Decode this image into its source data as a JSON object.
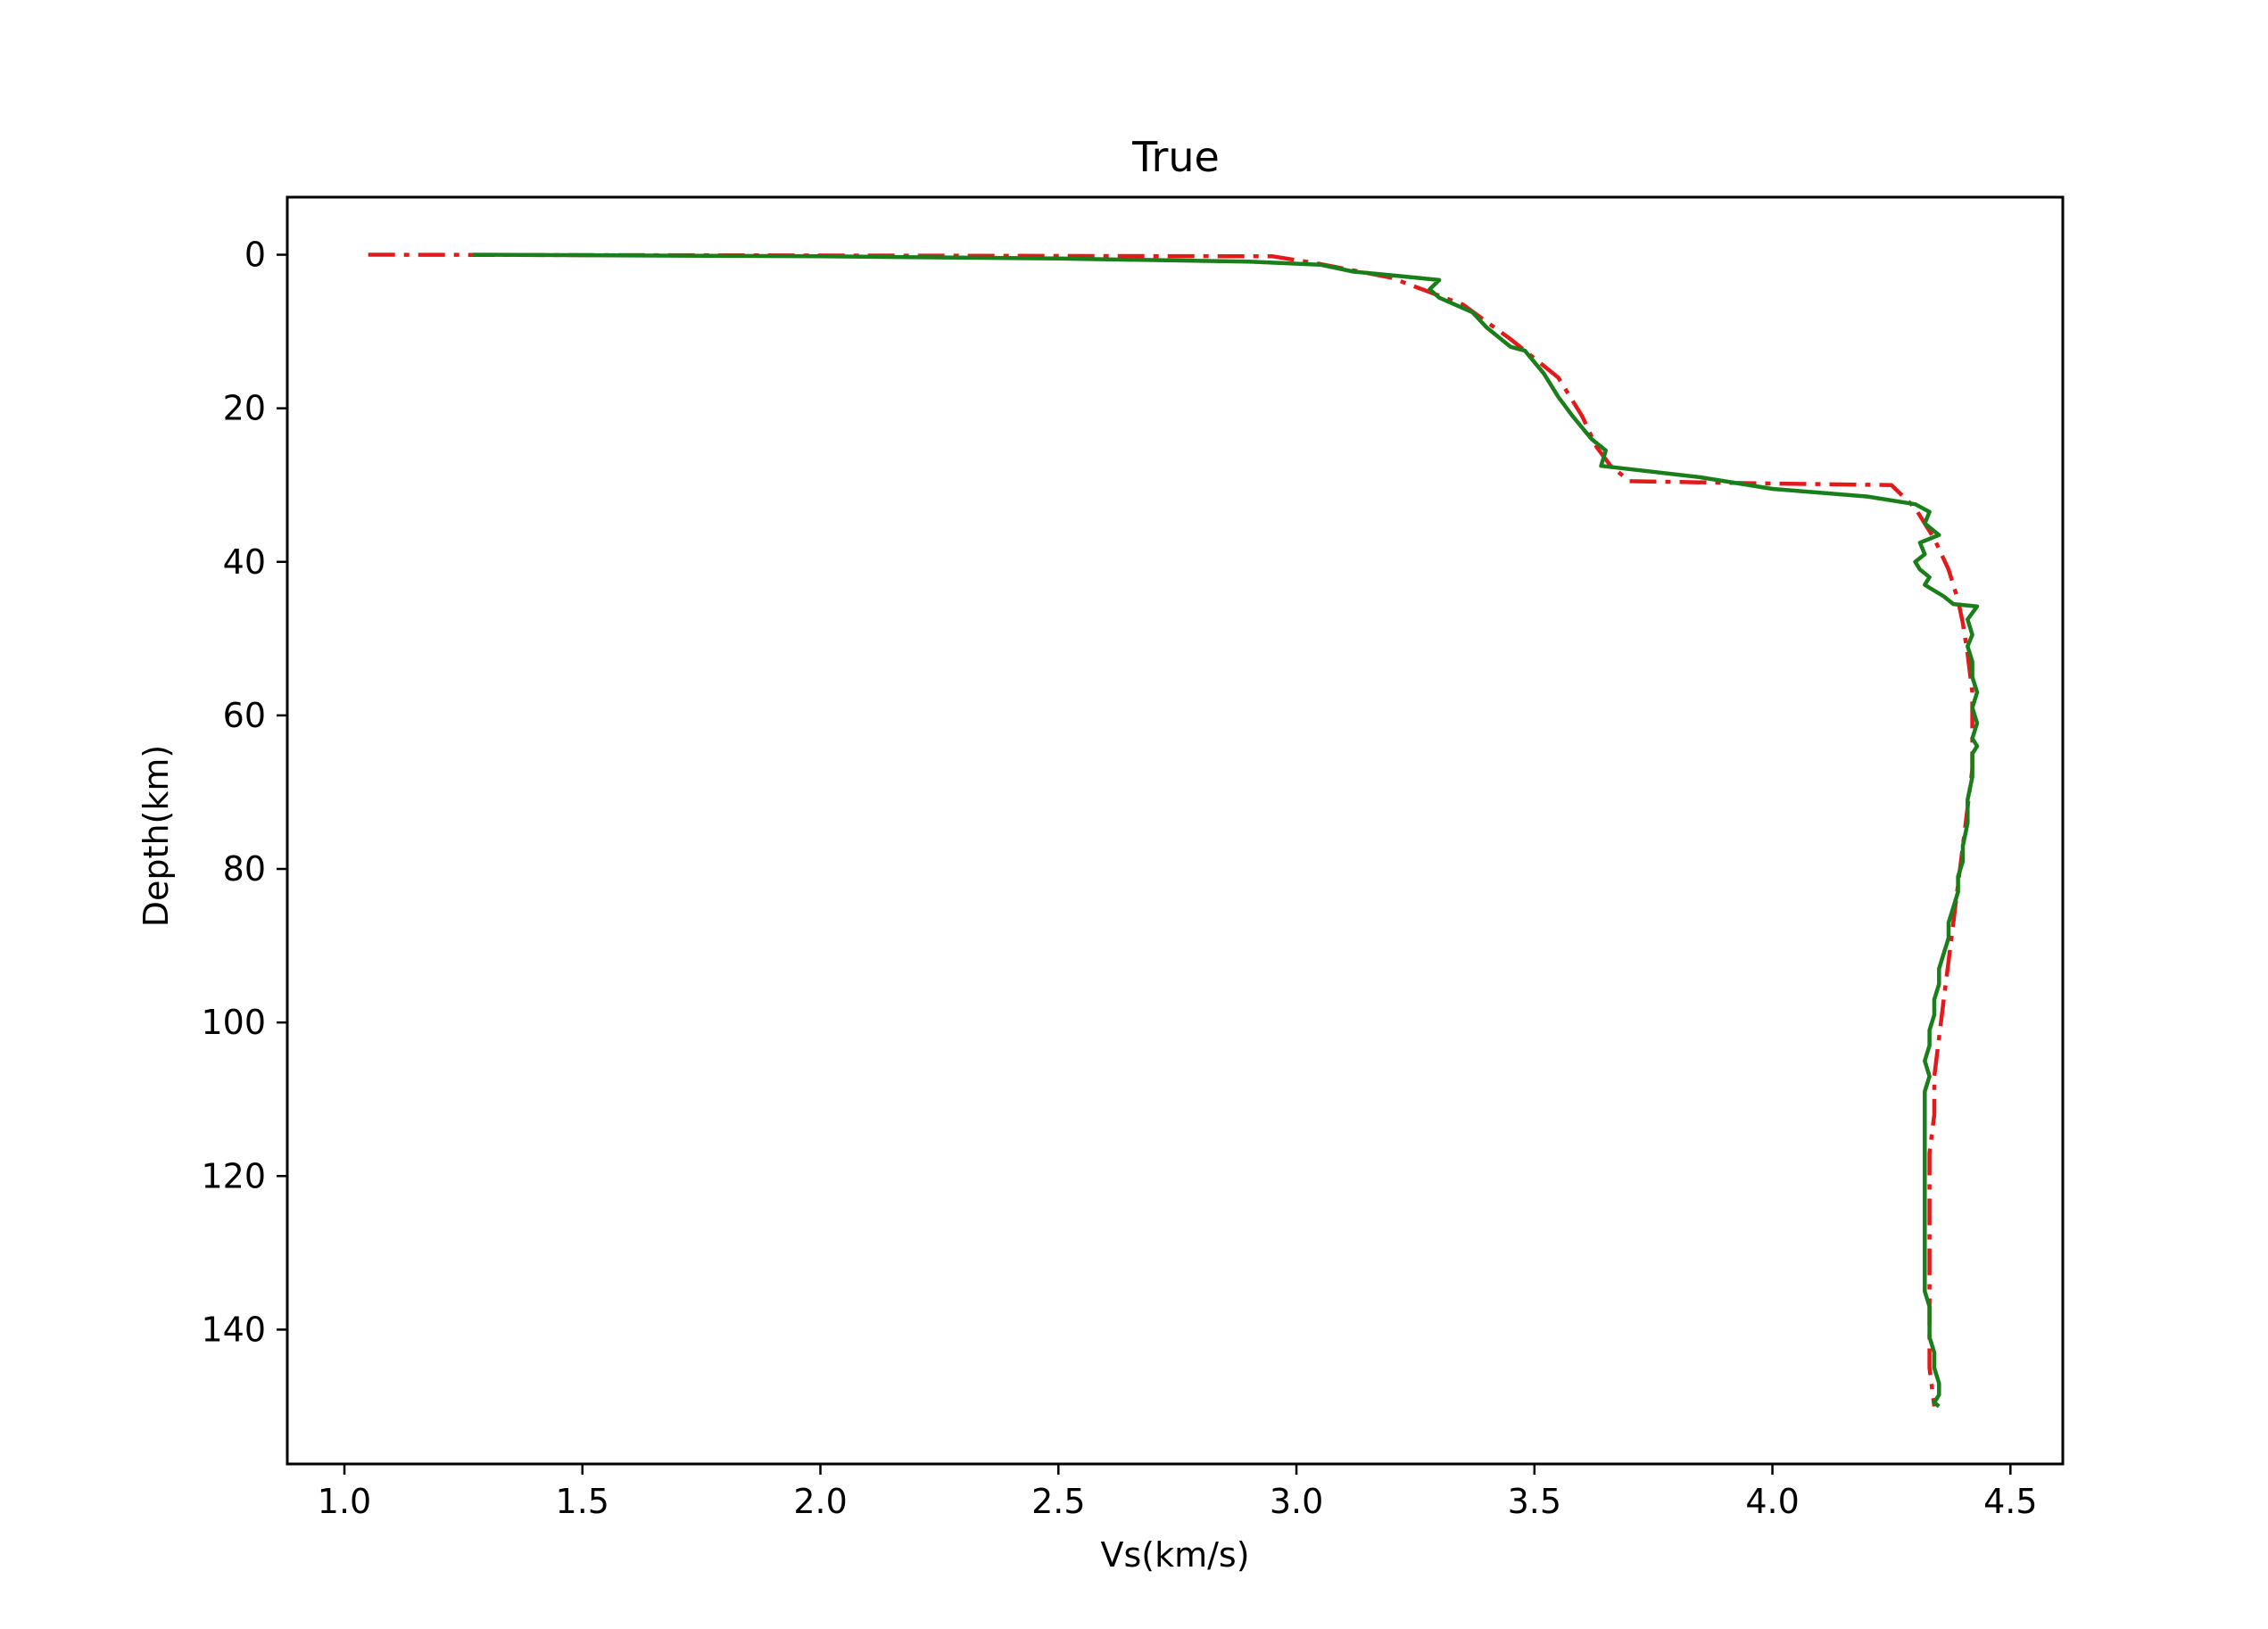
{
  "chart_data": {
    "type": "line",
    "title": "True",
    "xlabel": "Vs(km/s)",
    "ylabel": "Depth(km)",
    "xlim": [
      0.88,
      4.61
    ],
    "ylim": [
      157.5,
      -7.5
    ],
    "y_inverted": true,
    "xticks": [
      1.0,
      1.5,
      2.0,
      2.5,
      3.0,
      3.5,
      4.0,
      4.5
    ],
    "xtick_labels": [
      "1.0",
      "1.5",
      "2.0",
      "2.5",
      "3.0",
      "3.5",
      "4.0",
      "4.5"
    ],
    "yticks": [
      0,
      20,
      40,
      60,
      80,
      100,
      120,
      140
    ],
    "ytick_labels": [
      "0",
      "20",
      "40",
      "60",
      "80",
      "100",
      "120",
      "140"
    ],
    "grid": false,
    "legend": false,
    "series": [
      {
        "color": "#e31a1c",
        "style": "dash-dot",
        "points": [
          [
            1.05,
            0
          ],
          [
            2.95,
            0.2
          ],
          [
            3.05,
            1.2
          ],
          [
            3.2,
            3.0
          ],
          [
            3.35,
            6.5
          ],
          [
            3.45,
            11
          ],
          [
            3.55,
            16
          ],
          [
            3.6,
            21
          ],
          [
            3.63,
            25
          ],
          [
            3.66,
            27.5
          ],
          [
            3.7,
            29.5
          ],
          [
            4.0,
            29.8
          ],
          [
            4.25,
            30.0
          ],
          [
            4.3,
            33
          ],
          [
            4.34,
            37
          ],
          [
            4.37,
            41
          ],
          [
            4.39,
            45
          ],
          [
            4.4,
            48
          ],
          [
            4.41,
            52
          ],
          [
            4.42,
            57
          ],
          [
            4.42,
            62
          ],
          [
            4.42,
            67
          ],
          [
            4.41,
            72
          ],
          [
            4.4,
            77
          ],
          [
            4.39,
            82
          ],
          [
            4.38,
            87
          ],
          [
            4.37,
            92
          ],
          [
            4.36,
            97
          ],
          [
            4.35,
            102
          ],
          [
            4.34,
            107
          ],
          [
            4.34,
            112
          ],
          [
            4.33,
            117
          ],
          [
            4.33,
            122
          ],
          [
            4.33,
            127
          ],
          [
            4.33,
            132
          ],
          [
            4.33,
            137
          ],
          [
            4.33,
            141
          ],
          [
            4.33,
            145
          ],
          [
            4.34,
            150
          ]
        ]
      },
      {
        "color": "#1a7f1a",
        "style": "solid",
        "points": [
          [
            1.27,
            0
          ],
          [
            2.0,
            0.2
          ],
          [
            2.5,
            0.5
          ],
          [
            2.9,
            0.9
          ],
          [
            3.05,
            1.3
          ],
          [
            3.12,
            2.2
          ],
          [
            3.22,
            2.8
          ],
          [
            3.3,
            3.3
          ],
          [
            3.28,
            4.5
          ],
          [
            3.3,
            5.6
          ],
          [
            3.37,
            7.5
          ],
          [
            3.4,
            9.5
          ],
          [
            3.45,
            12.0
          ],
          [
            3.48,
            12.5
          ],
          [
            3.52,
            15.5
          ],
          [
            3.55,
            18.5
          ],
          [
            3.58,
            21
          ],
          [
            3.62,
            24
          ],
          [
            3.65,
            25.5
          ],
          [
            3.64,
            27.5
          ],
          [
            3.85,
            29.0
          ],
          [
            4.0,
            30.5
          ],
          [
            4.2,
            31.5
          ],
          [
            4.3,
            32.5
          ],
          [
            4.33,
            33.5
          ],
          [
            4.32,
            35
          ],
          [
            4.35,
            36.5
          ],
          [
            4.31,
            37.5
          ],
          [
            4.32,
            39
          ],
          [
            4.3,
            40
          ],
          [
            4.31,
            41
          ],
          [
            4.33,
            42
          ],
          [
            4.32,
            43
          ],
          [
            4.36,
            44.5
          ],
          [
            4.38,
            45.5
          ],
          [
            4.43,
            45.8
          ],
          [
            4.41,
            47.5
          ],
          [
            4.42,
            49.5
          ],
          [
            4.41,
            51
          ],
          [
            4.42,
            53
          ],
          [
            4.42,
            55
          ],
          [
            4.43,
            57
          ],
          [
            4.42,
            59
          ],
          [
            4.43,
            61
          ],
          [
            4.42,
            63
          ],
          [
            4.43,
            64
          ],
          [
            4.42,
            65
          ],
          [
            4.42,
            68
          ],
          [
            4.41,
            71
          ],
          [
            4.41,
            74
          ],
          [
            4.4,
            77
          ],
          [
            4.4,
            79
          ],
          [
            4.39,
            81
          ],
          [
            4.39,
            83
          ],
          [
            4.38,
            85
          ],
          [
            4.37,
            87
          ],
          [
            4.37,
            89
          ],
          [
            4.36,
            91
          ],
          [
            4.35,
            93
          ],
          [
            4.35,
            95
          ],
          [
            4.34,
            97
          ],
          [
            4.34,
            99
          ],
          [
            4.33,
            101
          ],
          [
            4.33,
            103
          ],
          [
            4.32,
            105
          ],
          [
            4.33,
            107
          ],
          [
            4.32,
            109
          ],
          [
            4.32,
            111
          ],
          [
            4.32,
            113
          ],
          [
            4.32,
            115
          ],
          [
            4.32,
            117
          ],
          [
            4.32,
            120
          ],
          [
            4.32,
            123
          ],
          [
            4.32,
            126
          ],
          [
            4.32,
            129
          ],
          [
            4.32,
            132
          ],
          [
            4.32,
            135
          ],
          [
            4.33,
            137
          ],
          [
            4.33,
            139
          ],
          [
            4.33,
            141
          ],
          [
            4.34,
            143
          ],
          [
            4.34,
            145
          ],
          [
            4.35,
            147
          ],
          [
            4.35,
            148.5
          ],
          [
            4.34,
            149.5
          ],
          [
            4.35,
            150
          ]
        ]
      }
    ]
  }
}
